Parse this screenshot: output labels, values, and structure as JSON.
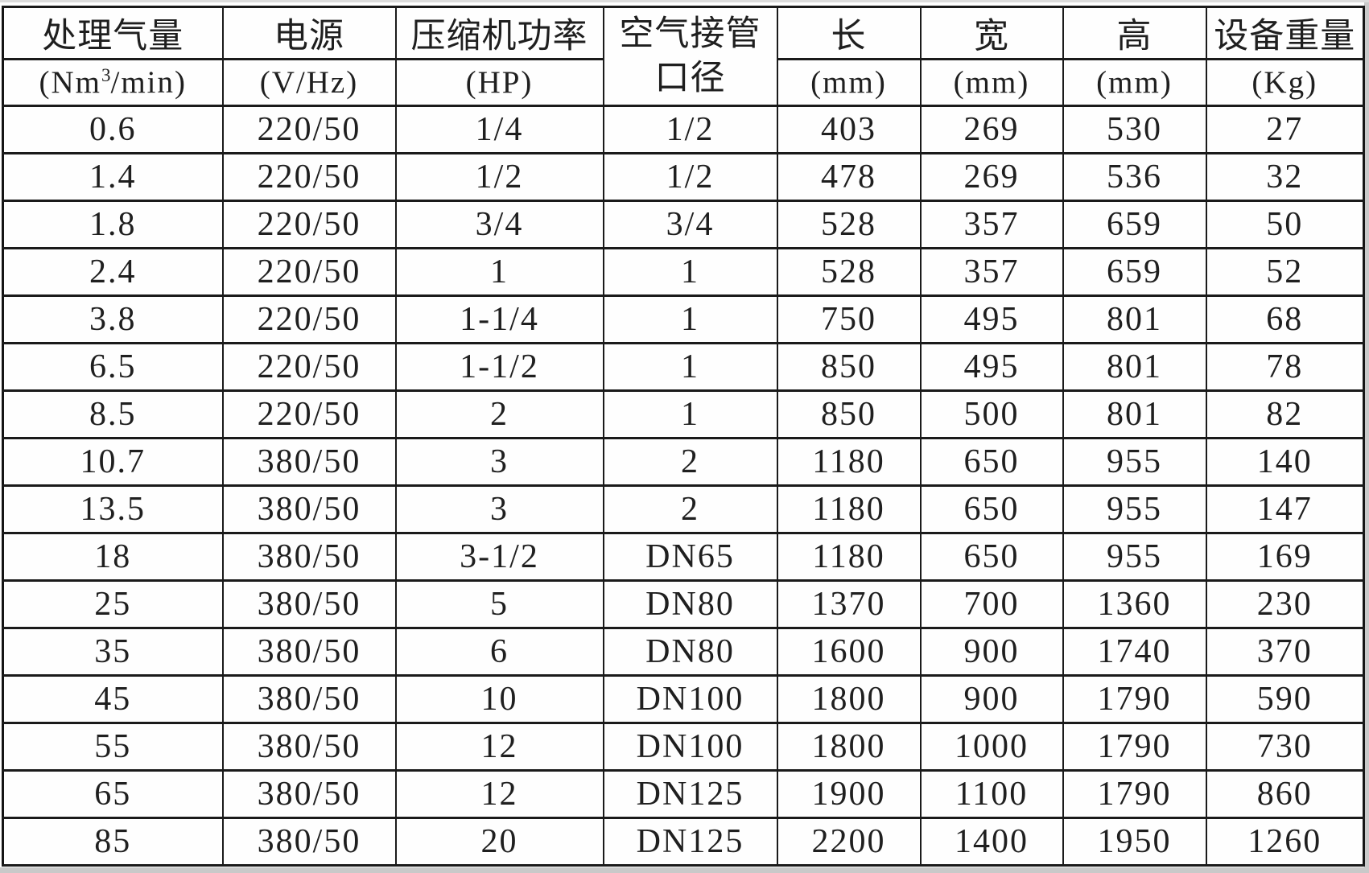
{
  "page": {
    "background": "#ffffff",
    "border_color": "#1a1a1a",
    "text_color": "#1f1f1f",
    "scan_edge_color": "#c9c9c9"
  },
  "chart_data": {
    "type": "table",
    "title": "",
    "columns": [
      {
        "title": "处理气量",
        "unit_prefix": "(Nm",
        "unit_sup": "3",
        "unit_suffix": "/min)"
      },
      {
        "title": "电源",
        "unit": "(V/Hz)"
      },
      {
        "title": "压缩机功率",
        "unit": "(HP)"
      },
      {
        "title_line1": "空气接管",
        "title_line2": "口径"
      },
      {
        "title": "长",
        "unit": "(mm)"
      },
      {
        "title": "宽",
        "unit": "(mm)"
      },
      {
        "title": "高",
        "unit": "(mm)"
      },
      {
        "title": "设备重量",
        "unit": "(Kg)"
      }
    ],
    "rows": [
      [
        "0.6",
        "220/50",
        "1/4",
        "1/2",
        "403",
        "269",
        "530",
        "27"
      ],
      [
        "1.4",
        "220/50",
        "1/2",
        "1/2",
        "478",
        "269",
        "536",
        "32"
      ],
      [
        "1.8",
        "220/50",
        "3/4",
        "3/4",
        "528",
        "357",
        "659",
        "50"
      ],
      [
        "2.4",
        "220/50",
        "1",
        "1",
        "528",
        "357",
        "659",
        "52"
      ],
      [
        "3.8",
        "220/50",
        "1-1/4",
        "1",
        "750",
        "495",
        "801",
        "68"
      ],
      [
        "6.5",
        "220/50",
        "1-1/2",
        "1",
        "850",
        "495",
        "801",
        "78"
      ],
      [
        "8.5",
        "220/50",
        "2",
        "1",
        "850",
        "500",
        "801",
        "82"
      ],
      [
        "10.7",
        "380/50",
        "3",
        "2",
        "1180",
        "650",
        "955",
        "140"
      ],
      [
        "13.5",
        "380/50",
        "3",
        "2",
        "1180",
        "650",
        "955",
        "147"
      ],
      [
        "18",
        "380/50",
        "3-1/2",
        "DN65",
        "1180",
        "650",
        "955",
        "169"
      ],
      [
        "25",
        "380/50",
        "5",
        "DN80",
        "1370",
        "700",
        "1360",
        "230"
      ],
      [
        "35",
        "380/50",
        "6",
        "DN80",
        "1600",
        "900",
        "1740",
        "370"
      ],
      [
        "45",
        "380/50",
        "10",
        "DN100",
        "1800",
        "900",
        "1790",
        "590"
      ],
      [
        "55",
        "380/50",
        "12",
        "DN100",
        "1800",
        "1000",
        "1790",
        "730"
      ],
      [
        "65",
        "380/50",
        "12",
        "DN125",
        "1900",
        "1100",
        "1790",
        "860"
      ],
      [
        "85",
        "380/50",
        "20",
        "DN125",
        "2200",
        "1400",
        "1950",
        "1260"
      ]
    ]
  }
}
